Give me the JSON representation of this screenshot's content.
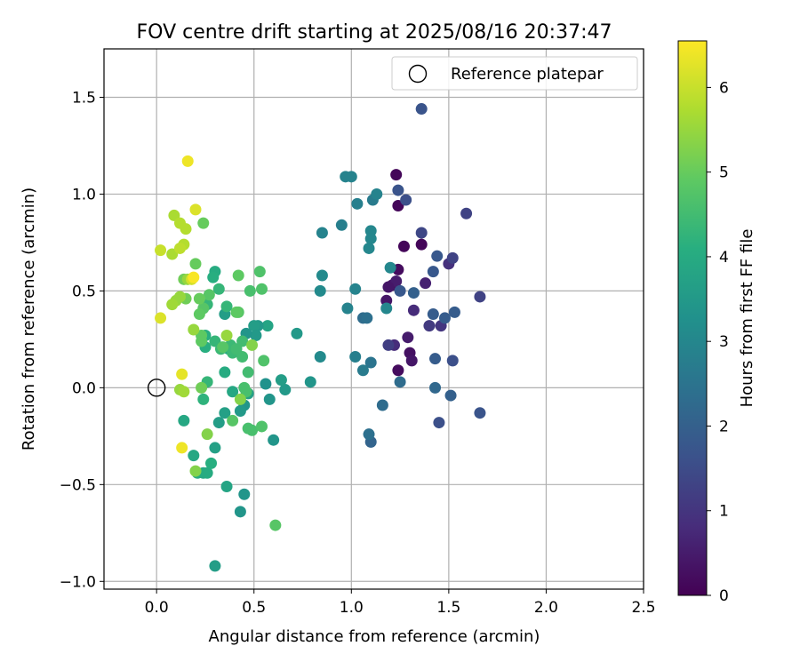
{
  "chart_data": {
    "type": "scatter",
    "title": "FOV centre drift starting at 2025/08/16 20:37:47",
    "xlabel": "Angular distance from reference (arcmin)",
    "ylabel": "Rotation from reference (arcmin)",
    "xlim": [
      -0.27,
      2.5
    ],
    "ylim": [
      -1.04,
      1.75
    ],
    "xticks": [
      0.0,
      0.5,
      1.0,
      1.5,
      2.0,
      2.5
    ],
    "yticks": [
      -1.0,
      -0.5,
      0.0,
      0.5,
      1.0,
      1.5
    ],
    "xtick_labels": [
      "0.0",
      "0.5",
      "1.0",
      "1.5",
      "2.0",
      "2.5"
    ],
    "ytick_labels": [
      "−1.0",
      "−0.5",
      "0.0",
      "0.5",
      "1.0",
      "1.5"
    ],
    "grid": true,
    "legend": {
      "position": "top-right",
      "entries": [
        "Reference platepar"
      ]
    },
    "reference_point": {
      "x": 0.0,
      "y": 0.0,
      "label": "Reference platepar"
    },
    "colorbar": {
      "label": "Hours from first FF file",
      "colormap": "viridis",
      "range": [
        0,
        6.55
      ],
      "ticks": [
        0,
        1,
        2,
        3,
        4,
        5,
        6
      ],
      "tick_labels": [
        "0",
        "1",
        "2",
        "3",
        "4",
        "5",
        "6"
      ]
    },
    "points": [
      {
        "x": 1.23,
        "y": 1.1,
        "hours": 0.1
      },
      {
        "x": 1.27,
        "y": 0.73,
        "hours": 0.1
      },
      {
        "x": 1.36,
        "y": 0.74,
        "hours": 0.1
      },
      {
        "x": 1.24,
        "y": 0.94,
        "hours": 0.1
      },
      {
        "x": 1.21,
        "y": 0.53,
        "hours": 0.3
      },
      {
        "x": 1.24,
        "y": 0.61,
        "hours": 0.2
      },
      {
        "x": 1.24,
        "y": 0.09,
        "hours": 0.2
      },
      {
        "x": 1.3,
        "y": 0.18,
        "hours": 0.3
      },
      {
        "x": 1.29,
        "y": 0.26,
        "hours": 0.5
      },
      {
        "x": 1.31,
        "y": 0.14,
        "hours": 0.4
      },
      {
        "x": 1.18,
        "y": 0.45,
        "hours": 0.4
      },
      {
        "x": 1.23,
        "y": 0.55,
        "hours": 0.5
      },
      {
        "x": 1.19,
        "y": 0.52,
        "hours": 0.4
      },
      {
        "x": 1.38,
        "y": 0.54,
        "hours": 0.6
      },
      {
        "x": 1.32,
        "y": 0.4,
        "hours": 0.8
      },
      {
        "x": 1.22,
        "y": 0.22,
        "hours": 0.8
      },
      {
        "x": 1.19,
        "y": 0.22,
        "hours": 1.2
      },
      {
        "x": 1.36,
        "y": 1.44,
        "hours": 1.7
      },
      {
        "x": 1.28,
        "y": 0.97,
        "hours": 1.6
      },
      {
        "x": 1.24,
        "y": 1.02,
        "hours": 1.7
      },
      {
        "x": 1.36,
        "y": 0.8,
        "hours": 1.4
      },
      {
        "x": 1.5,
        "y": 0.64,
        "hours": 0.9
      },
      {
        "x": 1.46,
        "y": 0.32,
        "hours": 1.0
      },
      {
        "x": 1.4,
        "y": 0.32,
        "hours": 1.1
      },
      {
        "x": 1.44,
        "y": 0.68,
        "hours": 1.8
      },
      {
        "x": 1.59,
        "y": 0.9,
        "hours": 1.3
      },
      {
        "x": 1.52,
        "y": 0.67,
        "hours": 1.3
      },
      {
        "x": 1.66,
        "y": 0.47,
        "hours": 1.3
      },
      {
        "x": 1.53,
        "y": 0.39,
        "hours": 1.9
      },
      {
        "x": 1.42,
        "y": 0.38,
        "hours": 1.9
      },
      {
        "x": 1.48,
        "y": 0.36,
        "hours": 1.9
      },
      {
        "x": 1.42,
        "y": 0.6,
        "hours": 1.8
      },
      {
        "x": 1.25,
        "y": 0.5,
        "hours": 1.8
      },
      {
        "x": 1.32,
        "y": 0.49,
        "hours": 2.0
      },
      {
        "x": 1.52,
        "y": 0.14,
        "hours": 1.6
      },
      {
        "x": 1.43,
        "y": 0.15,
        "hours": 1.9
      },
      {
        "x": 1.45,
        "y": -0.18,
        "hours": 1.6
      },
      {
        "x": 1.51,
        "y": -0.04,
        "hours": 2.0
      },
      {
        "x": 1.43,
        "y": 0.0,
        "hours": 2.2
      },
      {
        "x": 1.66,
        "y": -0.13,
        "hours": 1.7
      },
      {
        "x": 1.25,
        "y": 0.03,
        "hours": 2.3
      },
      {
        "x": 1.16,
        "y": -0.09,
        "hours": 2.3
      },
      {
        "x": 1.1,
        "y": -0.28,
        "hours": 2.1
      },
      {
        "x": 1.09,
        "y": -0.24,
        "hours": 2.4
      },
      {
        "x": 1.06,
        "y": 0.36,
        "hours": 2.3
      },
      {
        "x": 1.08,
        "y": 0.36,
        "hours": 2.4
      },
      {
        "x": 1.1,
        "y": 0.13,
        "hours": 2.5
      },
      {
        "x": 1.06,
        "y": 0.09,
        "hours": 2.7
      },
      {
        "x": 1.02,
        "y": 0.16,
        "hours": 2.8
      },
      {
        "x": 0.98,
        "y": 0.41,
        "hours": 2.9
      },
      {
        "x": 1.02,
        "y": 0.51,
        "hours": 2.9
      },
      {
        "x": 1.18,
        "y": 0.41,
        "hours": 3.0
      },
      {
        "x": 1.2,
        "y": 0.62,
        "hours": 3.0
      },
      {
        "x": 1.1,
        "y": 0.81,
        "hours": 3.0
      },
      {
        "x": 1.1,
        "y": 0.77,
        "hours": 3.0
      },
      {
        "x": 1.09,
        "y": 0.72,
        "hours": 3.0
      },
      {
        "x": 1.11,
        "y": 0.97,
        "hours": 2.7
      },
      {
        "x": 1.13,
        "y": 1.0,
        "hours": 2.9
      },
      {
        "x": 1.03,
        "y": 0.95,
        "hours": 2.8
      },
      {
        "x": 0.97,
        "y": 1.09,
        "hours": 2.9
      },
      {
        "x": 1.0,
        "y": 1.09,
        "hours": 2.9
      },
      {
        "x": 0.95,
        "y": 0.84,
        "hours": 2.8
      },
      {
        "x": 0.85,
        "y": 0.8,
        "hours": 2.9
      },
      {
        "x": 0.85,
        "y": 0.58,
        "hours": 3.1
      },
      {
        "x": 0.84,
        "y": 0.5,
        "hours": 3.1
      },
      {
        "x": 0.84,
        "y": 0.16,
        "hours": 3.1
      },
      {
        "x": 0.79,
        "y": 0.03,
        "hours": 3.4
      },
      {
        "x": 0.72,
        "y": 0.28,
        "hours": 3.5
      },
      {
        "x": 0.66,
        "y": -0.01,
        "hours": 3.5
      },
      {
        "x": 0.64,
        "y": 0.04,
        "hours": 3.6
      },
      {
        "x": 0.6,
        "y": -0.27,
        "hours": 3.4
      },
      {
        "x": 0.58,
        "y": -0.06,
        "hours": 3.4
      },
      {
        "x": 0.56,
        "y": 0.02,
        "hours": 3.3
      },
      {
        "x": 0.57,
        "y": 0.32,
        "hours": 3.8
      },
      {
        "x": 0.52,
        "y": 0.32,
        "hours": 3.5
      },
      {
        "x": 0.5,
        "y": 0.32,
        "hours": 3.6
      },
      {
        "x": 0.51,
        "y": 0.27,
        "hours": 3.5
      },
      {
        "x": 0.46,
        "y": 0.28,
        "hours": 3.4
      },
      {
        "x": 0.47,
        "y": -0.03,
        "hours": 3.7
      },
      {
        "x": 0.45,
        "y": -0.09,
        "hours": 3.4
      },
      {
        "x": 0.43,
        "y": -0.12,
        "hours": 3.5
      },
      {
        "x": 0.45,
        "y": -0.55,
        "hours": 3.4
      },
      {
        "x": 0.43,
        "y": -0.64,
        "hours": 3.4
      },
      {
        "x": 0.36,
        "y": -0.51,
        "hours": 3.8
      },
      {
        "x": 0.3,
        "y": -0.92,
        "hours": 3.6
      },
      {
        "x": 0.35,
        "y": -0.13,
        "hours": 3.7
      },
      {
        "x": 0.32,
        "y": -0.18,
        "hours": 3.6
      },
      {
        "x": 0.3,
        "y": -0.31,
        "hours": 3.7
      },
      {
        "x": 0.24,
        "y": -0.44,
        "hours": 3.9
      },
      {
        "x": 0.21,
        "y": -0.44,
        "hours": 4.0
      },
      {
        "x": 0.26,
        "y": -0.44,
        "hours": 4.0
      },
      {
        "x": 0.28,
        "y": -0.39,
        "hours": 4.1
      },
      {
        "x": 0.19,
        "y": -0.35,
        "hours": 3.9
      },
      {
        "x": 0.14,
        "y": -0.17,
        "hours": 3.9
      },
      {
        "x": 0.35,
        "y": 0.38,
        "hours": 3.6
      },
      {
        "x": 0.37,
        "y": 0.2,
        "hours": 3.9
      },
      {
        "x": 0.39,
        "y": -0.02,
        "hours": 3.9
      },
      {
        "x": 0.35,
        "y": 0.08,
        "hours": 4.0
      },
      {
        "x": 0.3,
        "y": 0.6,
        "hours": 4.0
      },
      {
        "x": 0.29,
        "y": 0.57,
        "hours": 4.1
      },
      {
        "x": 0.25,
        "y": 0.21,
        "hours": 4.1
      },
      {
        "x": 0.25,
        "y": 0.27,
        "hours": 4.1
      },
      {
        "x": 0.24,
        "y": -0.06,
        "hours": 4.2
      },
      {
        "x": 0.26,
        "y": 0.03,
        "hours": 4.3
      },
      {
        "x": 0.26,
        "y": 0.43,
        "hours": 4.3
      },
      {
        "x": 0.3,
        "y": 0.24,
        "hours": 4.3
      },
      {
        "x": 0.32,
        "y": 0.51,
        "hours": 4.3
      },
      {
        "x": 0.36,
        "y": 0.42,
        "hours": 4.3
      },
      {
        "x": 0.33,
        "y": 0.2,
        "hours": 4.4
      },
      {
        "x": 0.38,
        "y": 0.22,
        "hours": 4.4
      },
      {
        "x": 0.39,
        "y": 0.18,
        "hours": 4.4
      },
      {
        "x": 0.41,
        "y": 0.2,
        "hours": 4.5
      },
      {
        "x": 0.44,
        "y": 0.16,
        "hours": 4.5
      },
      {
        "x": 0.44,
        "y": 0.24,
        "hours": 4.5
      },
      {
        "x": 0.47,
        "y": 0.08,
        "hours": 4.5
      },
      {
        "x": 0.48,
        "y": 0.5,
        "hours": 4.6
      },
      {
        "x": 0.45,
        "y": 0.0,
        "hours": 4.6
      },
      {
        "x": 0.46,
        "y": -0.02,
        "hours": 4.6
      },
      {
        "x": 0.47,
        "y": -0.21,
        "hours": 4.6
      },
      {
        "x": 0.49,
        "y": -0.22,
        "hours": 4.6
      },
      {
        "x": 0.54,
        "y": -0.2,
        "hours": 4.7
      },
      {
        "x": 0.55,
        "y": 0.14,
        "hours": 4.7
      },
      {
        "x": 0.53,
        "y": 0.6,
        "hours": 4.7
      },
      {
        "x": 0.54,
        "y": 0.51,
        "hours": 4.7
      },
      {
        "x": 0.61,
        "y": -0.71,
        "hours": 4.8
      },
      {
        "x": 0.42,
        "y": 0.39,
        "hours": 4.8
      },
      {
        "x": 0.41,
        "y": 0.39,
        "hours": 4.9
      },
      {
        "x": 0.42,
        "y": 0.58,
        "hours": 4.9
      },
      {
        "x": 0.39,
        "y": -0.17,
        "hours": 4.8
      },
      {
        "x": 0.34,
        "y": 0.21,
        "hours": 4.8
      },
      {
        "x": 0.27,
        "y": 0.48,
        "hours": 4.8
      },
      {
        "x": 0.24,
        "y": 0.41,
        "hours": 4.8
      },
      {
        "x": 0.23,
        "y": 0.24,
        "hours": 4.9
      },
      {
        "x": 0.23,
        "y": 0.27,
        "hours": 4.9
      },
      {
        "x": 0.22,
        "y": 0.46,
        "hours": 5.0
      },
      {
        "x": 0.22,
        "y": 0.38,
        "hours": 4.9
      },
      {
        "x": 0.24,
        "y": 0.85,
        "hours": 5.0
      },
      {
        "x": 0.2,
        "y": 0.64,
        "hours": 5.0
      },
      {
        "x": 0.15,
        "y": 0.46,
        "hours": 5.1
      },
      {
        "x": 0.14,
        "y": 0.56,
        "hours": 5.1
      },
      {
        "x": 0.23,
        "y": 0.0,
        "hours": 5.1
      },
      {
        "x": 0.26,
        "y": -0.24,
        "hours": 5.3
      },
      {
        "x": 0.2,
        "y": -0.43,
        "hours": 5.3
      },
      {
        "x": 0.43,
        "y": -0.06,
        "hours": 5.3
      },
      {
        "x": 0.49,
        "y": 0.22,
        "hours": 5.3
      },
      {
        "x": 0.36,
        "y": 0.27,
        "hours": 5.5
      },
      {
        "x": 0.19,
        "y": 0.3,
        "hours": 5.5
      },
      {
        "x": 0.16,
        "y": 0.56,
        "hours": 5.5
      },
      {
        "x": 0.1,
        "y": 0.45,
        "hours": 5.5
      },
      {
        "x": 0.12,
        "y": 0.47,
        "hours": 5.5
      },
      {
        "x": 0.12,
        "y": -0.01,
        "hours": 5.5
      },
      {
        "x": 0.14,
        "y": -0.02,
        "hours": 5.6
      },
      {
        "x": 0.08,
        "y": 0.43,
        "hours": 5.6
      },
      {
        "x": 0.08,
        "y": 0.69,
        "hours": 5.7
      },
      {
        "x": 0.09,
        "y": 0.89,
        "hours": 5.7
      },
      {
        "x": 0.14,
        "y": 0.74,
        "hours": 5.8
      },
      {
        "x": 0.12,
        "y": 0.85,
        "hours": 5.8
      },
      {
        "x": 0.15,
        "y": 0.82,
        "hours": 5.8
      },
      {
        "x": 0.12,
        "y": 0.72,
        "hours": 5.9
      },
      {
        "x": 0.02,
        "y": 0.71,
        "hours": 6.0
      },
      {
        "x": 0.18,
        "y": 0.56,
        "hours": 6.1
      },
      {
        "x": 0.2,
        "y": 0.92,
        "hours": 6.2
      },
      {
        "x": 0.02,
        "y": 0.36,
        "hours": 6.2
      },
      {
        "x": 0.13,
        "y": 0.07,
        "hours": 6.3
      },
      {
        "x": 0.13,
        "y": -0.31,
        "hours": 6.4
      },
      {
        "x": 0.16,
        "y": 1.17,
        "hours": 6.4
      },
      {
        "x": 0.19,
        "y": 0.57,
        "hours": 6.5
      }
    ]
  }
}
